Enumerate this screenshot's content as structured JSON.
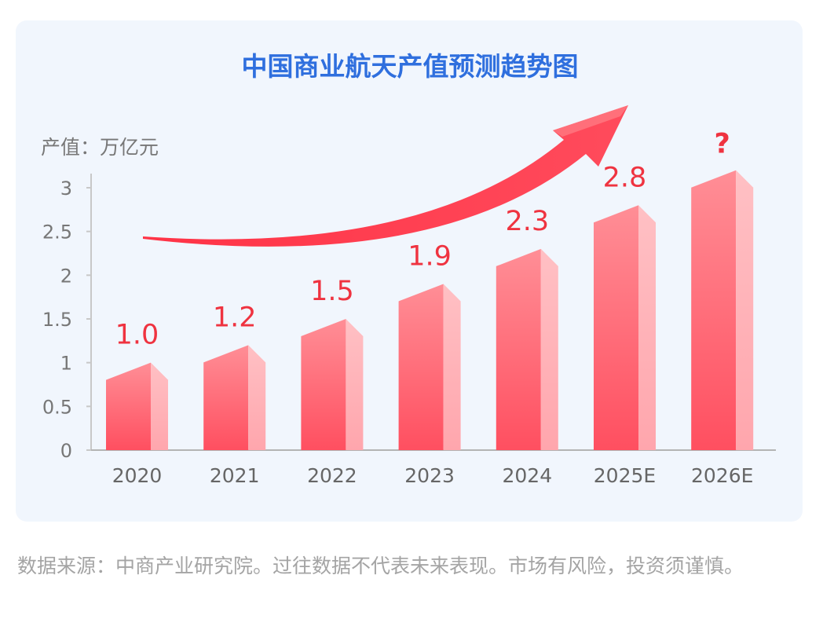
{
  "chart_data": {
    "type": "bar",
    "title": "中国商业航天产值预测趋势图",
    "ylabel": "产值：万亿元",
    "categories": [
      "2020",
      "2021",
      "2022",
      "2023",
      "2024",
      "2025E",
      "2026E"
    ],
    "values": [
      1.0,
      1.2,
      1.5,
      1.9,
      2.3,
      2.8,
      null
    ],
    "data_labels": [
      "1.0",
      "1.2",
      "1.5",
      "1.9",
      "2.3",
      "2.8",
      "?"
    ],
    "yticks": [
      "0",
      "0.5",
      "1",
      "1.5",
      "2",
      "2.5",
      "3"
    ],
    "ylim": [
      0,
      3
    ],
    "grid": false,
    "legend": "none",
    "annotation": "upward trend arrow",
    "colors": {
      "title": "#2f6fde",
      "bar_front_top": "#ff8e96",
      "bar_front_bottom": "#ff4f60",
      "bar_side": "#ffb4b9",
      "bar_top": "#ff6e79",
      "value_label": "#ef3340",
      "arrow": "#ff3b4d",
      "card_background": "#f1f6fd"
    }
  },
  "footnote": "数据来源：中商产业研究院。过往数据不代表未来表现。市场有风险，投资须谨慎。"
}
